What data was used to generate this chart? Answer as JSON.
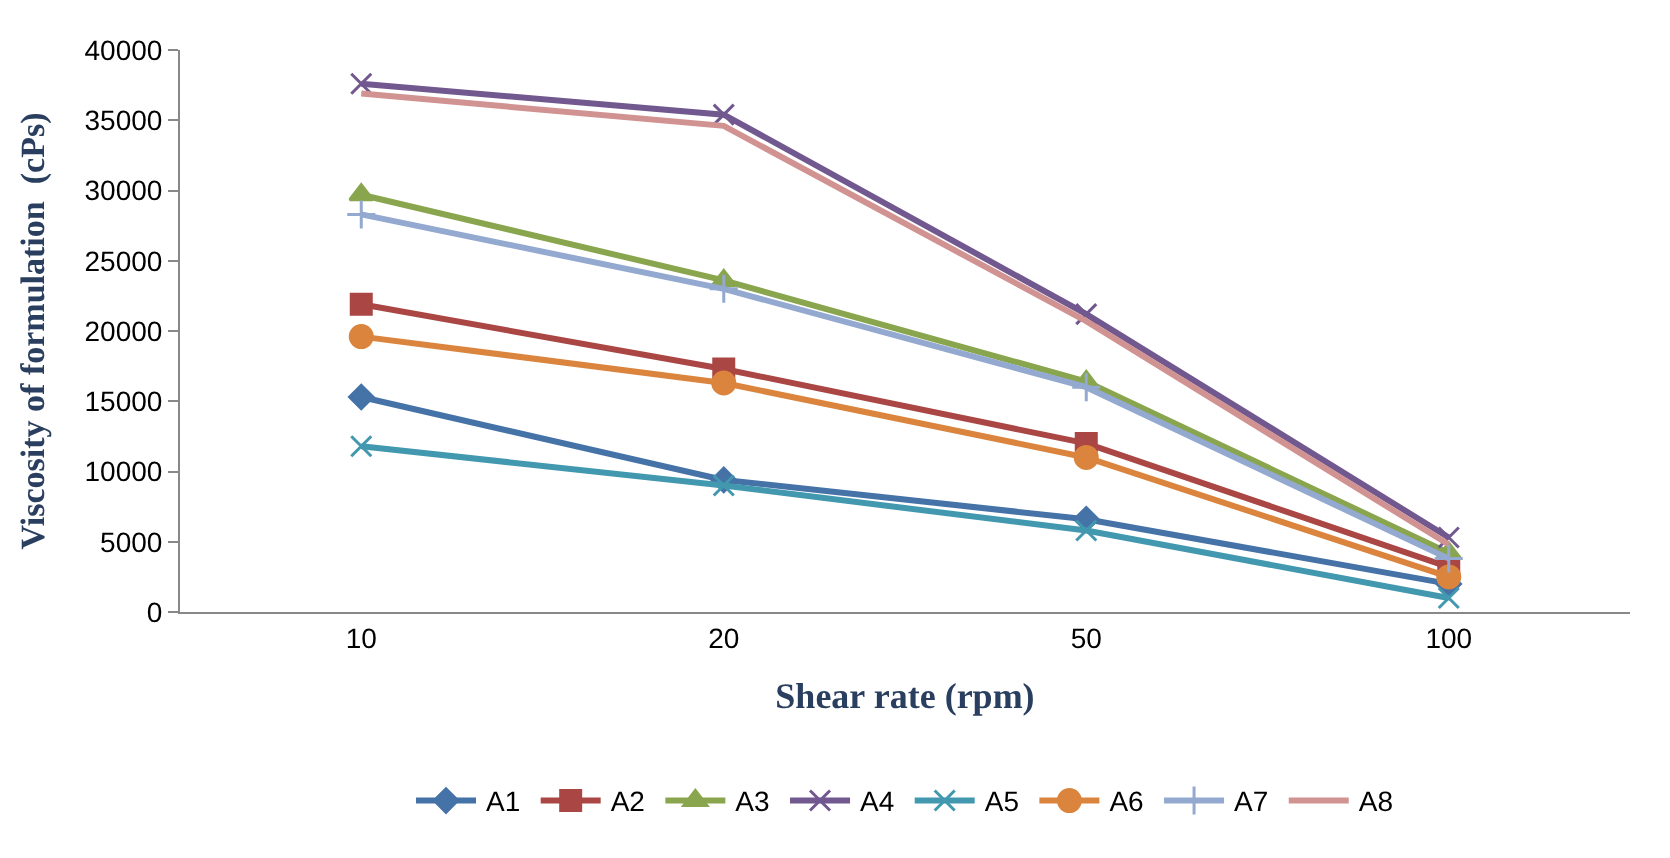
{
  "chart_data": {
    "type": "line",
    "xlabel": "Shear rate (rpm)",
    "ylabel": "Viscosity of formulation  (cPs)",
    "categories": [
      "10",
      "20",
      "50",
      "100"
    ],
    "ylim": [
      0,
      40000
    ],
    "yticks": [
      0,
      5000,
      10000,
      15000,
      20000,
      25000,
      30000,
      35000,
      40000
    ],
    "legend": "bottom",
    "series": [
      {
        "name": "A1",
        "color": "#4572a7",
        "marker": "diamond",
        "values": [
          15300,
          9400,
          6600,
          2000
        ]
      },
      {
        "name": "A2",
        "color": "#aa4643",
        "marker": "square",
        "values": [
          21900,
          17300,
          12000,
          3200
        ]
      },
      {
        "name": "A3",
        "color": "#89a54e",
        "marker": "triangle",
        "values": [
          29700,
          23600,
          16400,
          4200
        ]
      },
      {
        "name": "A4",
        "color": "#71588f",
        "marker": "cross",
        "values": [
          37600,
          35400,
          21200,
          5300
        ]
      },
      {
        "name": "A5",
        "color": "#4198af",
        "marker": "cross",
        "values": [
          11800,
          9000,
          5800,
          1000
        ]
      },
      {
        "name": "A6",
        "color": "#db843d",
        "marker": "circle",
        "values": [
          19600,
          16300,
          11000,
          2500
        ]
      },
      {
        "name": "A7",
        "color": "#93a9cf",
        "marker": "plus",
        "values": [
          28300,
          23000,
          16000,
          3800
        ]
      },
      {
        "name": "A8",
        "color": "#d19392",
        "marker": "none",
        "values": [
          36900,
          34600,
          20700,
          4800
        ]
      }
    ]
  }
}
